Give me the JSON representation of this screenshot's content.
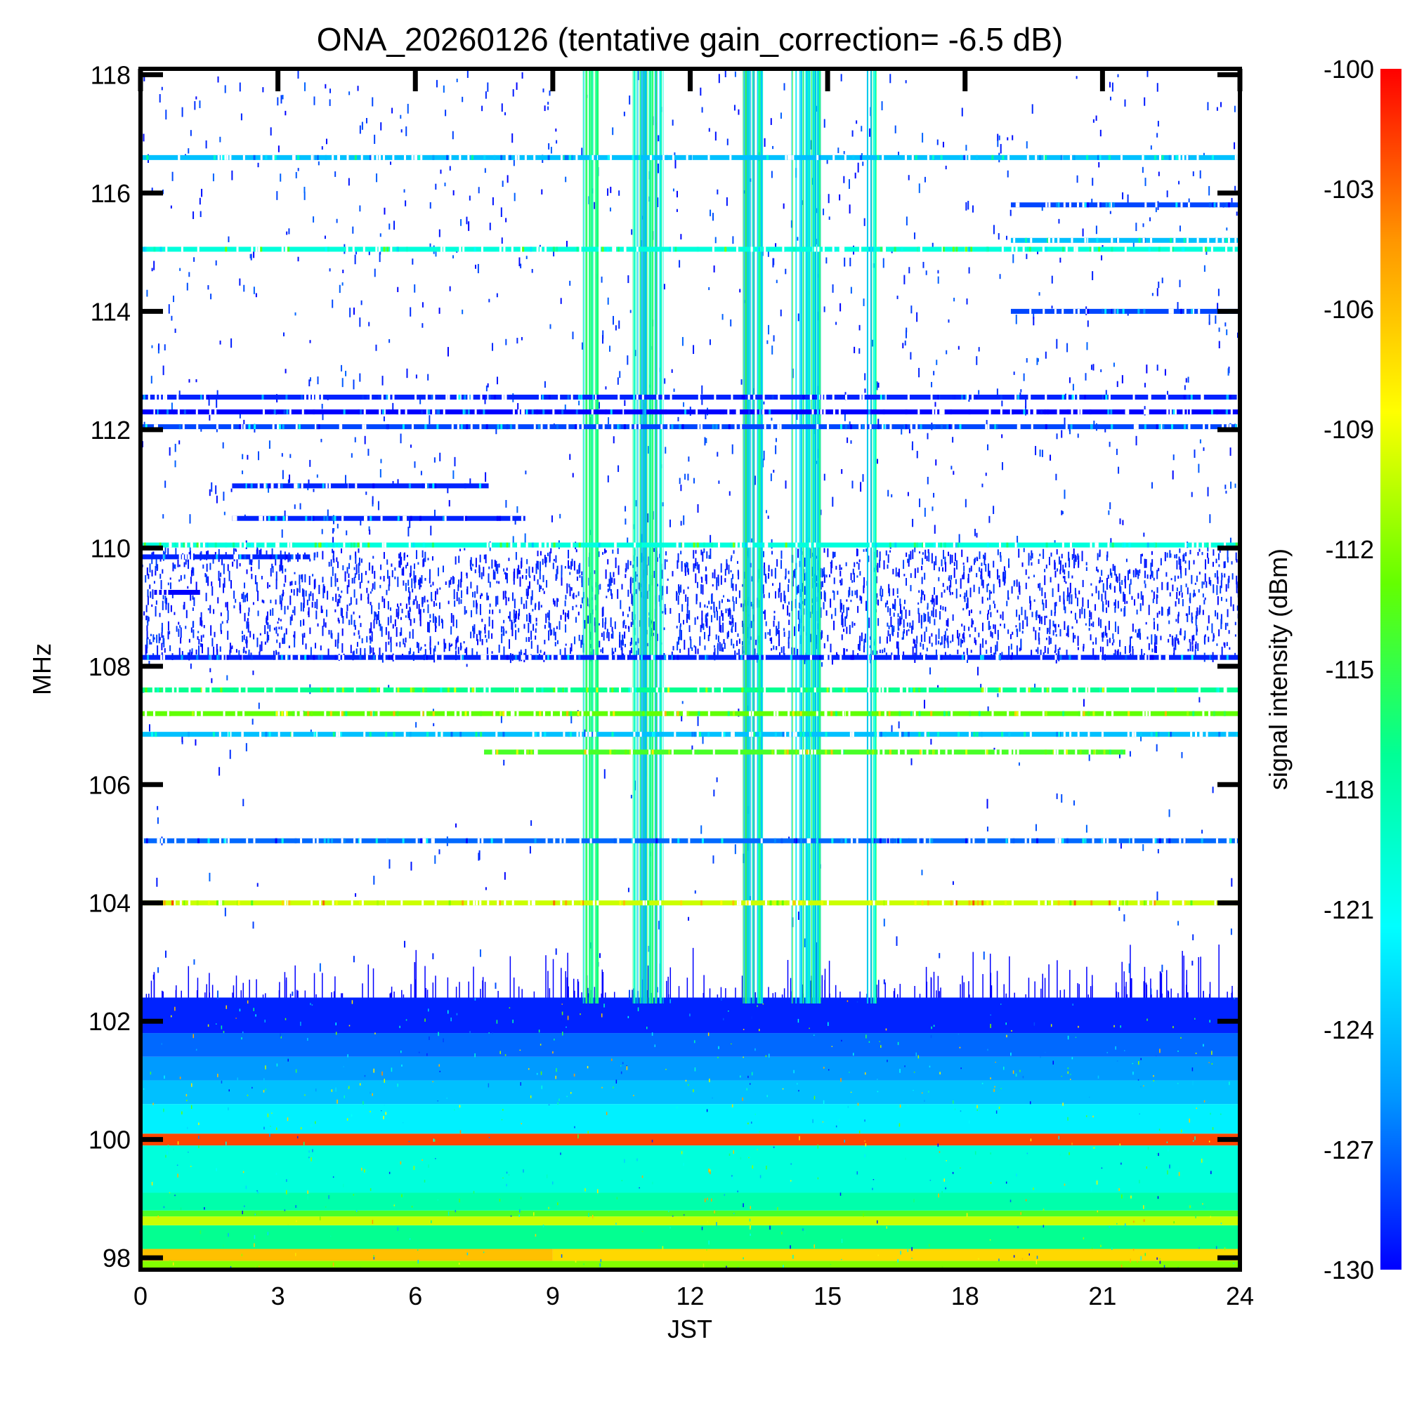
{
  "chart_data": {
    "type": "heatmap",
    "title": "ONA_20260126 (tentative gain_correction= -6.5 dB)",
    "xlabel": "JST",
    "ylabel": "MHz",
    "colorbar_label": "signal intensity (dBm)",
    "xlim": [
      0,
      24
    ],
    "ylim": [
      97.8,
      118.1
    ],
    "zlim": [
      -130,
      -100
    ],
    "x_ticks": [
      "0",
      "3",
      "6",
      "9",
      "12",
      "15",
      "18",
      "21",
      "24"
    ],
    "y_ticks": [
      "98",
      "100",
      "102",
      "104",
      "106",
      "108",
      "110",
      "112",
      "114",
      "116",
      "118"
    ],
    "colorbar_ticks": [
      "-100",
      "-103",
      "-106",
      "-109",
      "-112",
      "-115",
      "-118",
      "-121",
      "-124",
      "-127",
      "-130"
    ],
    "colormap": [
      "#0000ff",
      "#0096ff",
      "#00ffff",
      "#00ff96",
      "#64ff00",
      "#ffff00",
      "#ff9600",
      "#ff0000"
    ],
    "bands": [
      {
        "f0": 97.8,
        "f1": 97.95,
        "x0": 0,
        "x1": 24,
        "dbm": -112
      },
      {
        "f0": 97.95,
        "f1": 98.15,
        "x0": 0,
        "x1": 9,
        "dbm": -106
      },
      {
        "f0": 97.95,
        "f1": 98.15,
        "x0": 9,
        "x1": 24,
        "dbm": -107
      },
      {
        "f0": 98.15,
        "f1": 98.55,
        "x0": 0,
        "x1": 24,
        "dbm": -117
      },
      {
        "f0": 98.55,
        "f1": 98.7,
        "x0": 0,
        "x1": 24,
        "dbm": -110
      },
      {
        "f0": 98.7,
        "f1": 98.8,
        "x0": 0,
        "x1": 24,
        "dbm": -114
      },
      {
        "f0": 98.8,
        "f1": 99.1,
        "x0": 0,
        "x1": 24,
        "dbm": -118
      },
      {
        "f0": 99.1,
        "f1": 99.9,
        "x0": 0,
        "x1": 24,
        "dbm": -120
      },
      {
        "f0": 99.9,
        "f1": 100.1,
        "x0": 0,
        "x1": 24,
        "dbm": -102
      },
      {
        "f0": 100.1,
        "f1": 100.6,
        "x0": 0,
        "x1": 24,
        "dbm": -122
      },
      {
        "f0": 100.6,
        "f1": 101.0,
        "x0": 0,
        "x1": 24,
        "dbm": -124
      },
      {
        "f0": 101.0,
        "f1": 101.4,
        "x0": 0,
        "x1": 24,
        "dbm": -125.5
      },
      {
        "f0": 101.4,
        "f1": 101.8,
        "x0": 0,
        "x1": 24,
        "dbm": -127
      },
      {
        "f0": 101.8,
        "f1": 102.4,
        "x0": 0,
        "x1": 24,
        "dbm": -129
      }
    ],
    "lines": [
      {
        "f": 116.6,
        "x0": 0,
        "x1": 24,
        "dbm": -124
      },
      {
        "f": 115.05,
        "x0": 0,
        "x1": 24,
        "dbm": -120
      },
      {
        "f": 115.2,
        "x0": 19,
        "x1": 24,
        "dbm": -124
      },
      {
        "f": 115.8,
        "x0": 19,
        "x1": 24,
        "dbm": -128
      },
      {
        "f": 114.0,
        "x0": 19,
        "x1": 24,
        "dbm": -128
      },
      {
        "f": 112.55,
        "x0": 0,
        "x1": 24,
        "dbm": -129
      },
      {
        "f": 112.3,
        "x0": 0,
        "x1": 24,
        "dbm": -130
      },
      {
        "f": 112.05,
        "x0": 0,
        "x1": 24,
        "dbm": -128
      },
      {
        "f": 111.05,
        "x0": 2,
        "x1": 7.6,
        "dbm": -129
      },
      {
        "f": 110.5,
        "x0": 2,
        "x1": 8.4,
        "dbm": -129
      },
      {
        "f": 110.05,
        "x0": 0,
        "x1": 24,
        "dbm": -120
      },
      {
        "f": 109.85,
        "x0": 0,
        "x1": 3.7,
        "dbm": -129
      },
      {
        "f": 109.25,
        "x0": 0.3,
        "x1": 1.3,
        "dbm": -130
      },
      {
        "f": 108.15,
        "x0": 0,
        "x1": 24,
        "dbm": -129
      },
      {
        "f": 107.6,
        "x0": 0,
        "x1": 24,
        "dbm": -117
      },
      {
        "f": 107.2,
        "x0": 0,
        "x1": 24,
        "dbm": -113
      },
      {
        "f": 106.85,
        "x0": 0,
        "x1": 24,
        "dbm": -124
      },
      {
        "f": 106.55,
        "x0": 7.5,
        "x1": 21.5,
        "dbm": -114
      },
      {
        "f": 105.05,
        "x0": 0,
        "x1": 24,
        "dbm": -127
      },
      {
        "f": 104.0,
        "x0": 0,
        "x1": 24,
        "dbm": -110
      }
    ],
    "burst_windows": [
      {
        "x0": 9.65,
        "x1": 10.0
      },
      {
        "x0": 10.7,
        "x1": 11.4
      },
      {
        "x0": 13.1,
        "x1": 13.6
      },
      {
        "x0": 14.2,
        "x1": 14.85
      },
      {
        "x0": 15.85,
        "x1": 16.05
      }
    ],
    "noise_region": {
      "f0": 108.2,
      "f1": 110.0
    }
  }
}
